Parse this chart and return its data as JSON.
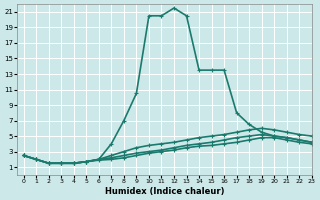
{
  "xlabel": "Humidex (Indice chaleur)",
  "ylabel": "",
  "background_color": "#cce8e8",
  "grid_color": "#ffffff",
  "line_color": "#1a7a6e",
  "xlim": [
    -0.5,
    23
  ],
  "ylim": [
    0,
    22
  ],
  "xticks": [
    0,
    1,
    2,
    3,
    4,
    5,
    6,
    7,
    8,
    9,
    10,
    11,
    12,
    13,
    14,
    15,
    16,
    17,
    18,
    19,
    20,
    21,
    22,
    23
  ],
  "yticks": [
    1,
    3,
    5,
    7,
    9,
    11,
    13,
    15,
    17,
    19,
    21
  ],
  "lines": [
    {
      "x": [
        0,
        1,
        2,
        3,
        4,
        5,
        6,
        7,
        8,
        9,
        10,
        11,
        12,
        13,
        14,
        15,
        16,
        17,
        18,
        19,
        20,
        21,
        22,
        23
      ],
      "y": [
        2.5,
        2.0,
        1.5,
        1.5,
        1.5,
        1.7,
        2.0,
        4.0,
        7.0,
        10.5,
        20.5,
        20.5,
        21.5,
        20.5,
        13.5,
        13.5,
        13.5,
        8.0,
        6.5,
        5.5,
        5.0,
        4.8,
        4.5,
        4.2
      ]
    },
    {
      "x": [
        0,
        1,
        2,
        3,
        4,
        5,
        6,
        7,
        8,
        9,
        10,
        11,
        12,
        13,
        14,
        15,
        16,
        17,
        18,
        19,
        20,
        21,
        22,
        23
      ],
      "y": [
        2.5,
        2.0,
        1.5,
        1.5,
        1.5,
        1.7,
        2.0,
        2.5,
        3.0,
        3.5,
        3.8,
        4.0,
        4.2,
        4.5,
        4.8,
        5.0,
        5.2,
        5.5,
        5.8,
        6.0,
        5.8,
        5.5,
        5.2,
        5.0
      ]
    },
    {
      "x": [
        0,
        1,
        2,
        3,
        4,
        5,
        6,
        7,
        8,
        9,
        10,
        11,
        12,
        13,
        14,
        15,
        16,
        17,
        18,
        19,
        20,
        21,
        22,
        23
      ],
      "y": [
        2.5,
        2.0,
        1.5,
        1.5,
        1.5,
        1.7,
        2.0,
        2.2,
        2.5,
        2.8,
        3.0,
        3.2,
        3.5,
        3.8,
        4.0,
        4.2,
        4.5,
        4.8,
        5.0,
        5.2,
        5.0,
        4.8,
        4.5,
        4.2
      ]
    },
    {
      "x": [
        0,
        1,
        2,
        3,
        4,
        5,
        6,
        7,
        8,
        9,
        10,
        11,
        12,
        13,
        14,
        15,
        16,
        17,
        18,
        19,
        20,
        21,
        22,
        23
      ],
      "y": [
        2.5,
        2.0,
        1.5,
        1.5,
        1.5,
        1.7,
        1.9,
        2.0,
        2.2,
        2.5,
        2.8,
        3.0,
        3.2,
        3.5,
        3.7,
        3.8,
        4.0,
        4.2,
        4.5,
        4.8,
        4.8,
        4.5,
        4.2,
        4.0
      ]
    }
  ]
}
